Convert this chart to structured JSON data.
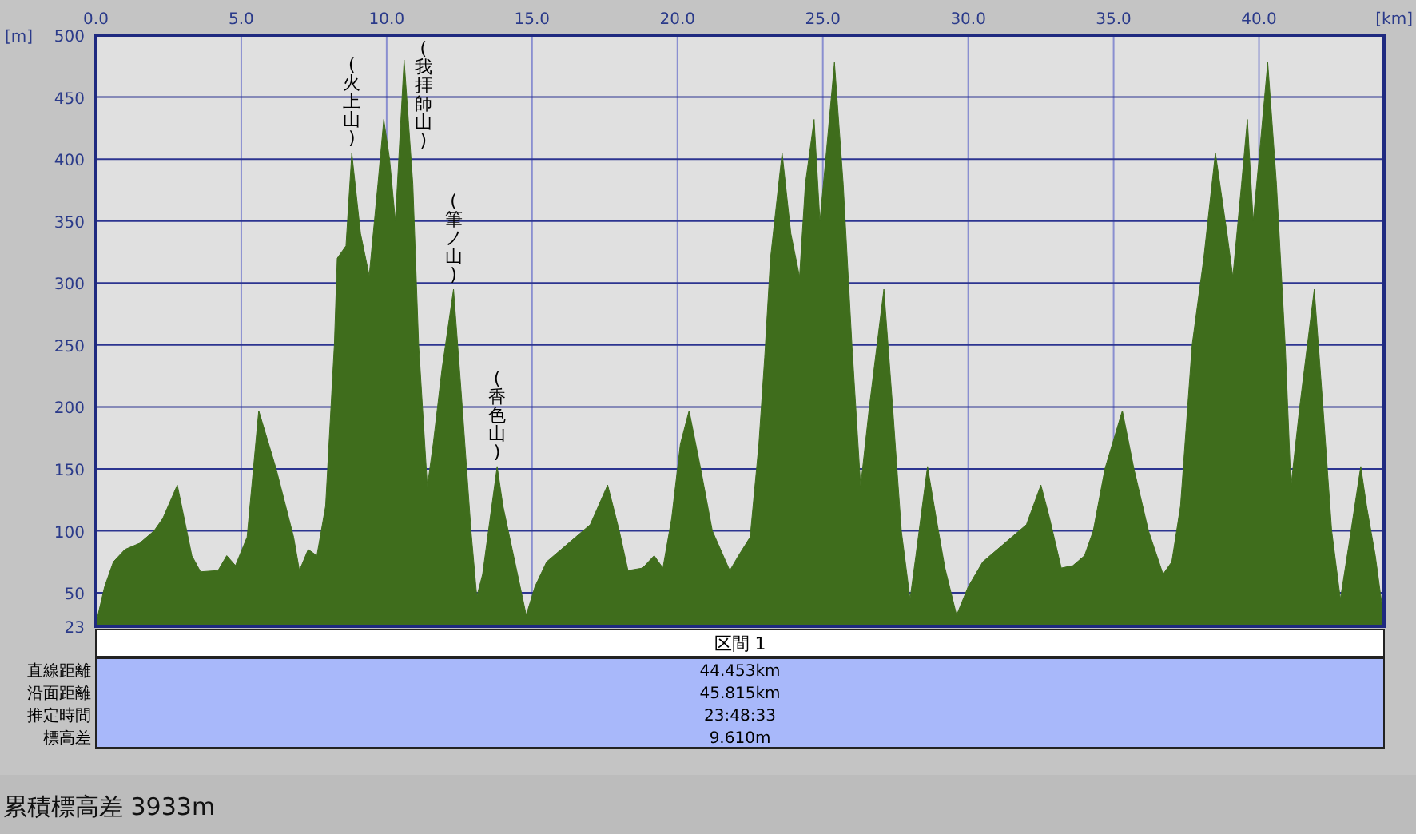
{
  "chart_data": {
    "type": "area",
    "xlabel": "[km]",
    "ylabel": "[m]",
    "color": "#3f6d1c",
    "grid": true,
    "xlim": [
      0,
      44.3
    ],
    "ylim": [
      23,
      500
    ],
    "xticks": [
      {
        "value": 0,
        "label": "0.0"
      },
      {
        "value": 5,
        "label": "5.0"
      },
      {
        "value": 10,
        "label": "10.0"
      },
      {
        "value": 15,
        "label": "15.0"
      },
      {
        "value": 20,
        "label": "20.0"
      },
      {
        "value": 25,
        "label": "25.0"
      },
      {
        "value": 30,
        "label": "30.0"
      },
      {
        "value": 35,
        "label": "35.0"
      },
      {
        "value": 40,
        "label": "40.0"
      }
    ],
    "yticks": [
      23,
      50,
      100,
      150,
      200,
      250,
      300,
      350,
      400,
      450,
      500
    ],
    "x": [
      0,
      0.3,
      0.6,
      1.0,
      1.5,
      2.0,
      2.3,
      2.8,
      3.3,
      3.6,
      4.2,
      4.5,
      4.8,
      5.2,
      5.6,
      6.2,
      6.8,
      7.0,
      7.3,
      7.6,
      7.9,
      8.2,
      8.3,
      8.6,
      8.8,
      9.1,
      9.4,
      9.7,
      9.9,
      10.1,
      10.3,
      10.6,
      10.9,
      11.1,
      11.4,
      11.6,
      11.9,
      12.3,
      12.6,
      12.9,
      13.1,
      13.3,
      13.5,
      13.8,
      14.0,
      14.5,
      14.8,
      15.1,
      15.5,
      16.0,
      16.5,
      17.0,
      17.6,
      18.0,
      18.3,
      18.8,
      19.2,
      19.5,
      19.8,
      20.1,
      20.4,
      20.8,
      21.2,
      21.8,
      22.1,
      22.5,
      22.8,
      23.0,
      23.2,
      23.6,
      23.9,
      24.2,
      24.4,
      24.7,
      24.9,
      25.1,
      25.4,
      25.7,
      26.0,
      26.3,
      26.6,
      27.1,
      27.4,
      27.7,
      28.0,
      28.2,
      28.6,
      28.9,
      29.2,
      29.6,
      30.0,
      30.5,
      31.0,
      31.5,
      32.0,
      32.5,
      32.8,
      33.2,
      33.6,
      34.0,
      34.3,
      34.7,
      35.3,
      35.7,
      36.2,
      36.7,
      37.0,
      37.3,
      37.7,
      38.1,
      38.5,
      38.9,
      39.1,
      39.4,
      39.6,
      39.8,
      40.0,
      40.3,
      40.6,
      40.9,
      41.1,
      41.4,
      41.9,
      42.2,
      42.5,
      42.8,
      43.1,
      43.5,
      43.7,
      44.0,
      44.3
    ],
    "values": [
      25,
      55,
      75,
      85,
      90,
      100,
      110,
      137,
      80,
      67,
      68,
      80,
      72,
      95,
      197,
      150,
      95,
      68,
      85,
      80,
      120,
      250,
      320,
      330,
      405,
      340,
      306,
      380,
      432,
      400,
      350,
      480,
      380,
      250,
      136,
      170,
      230,
      295,
      200,
      100,
      47,
      65,
      100,
      152,
      120,
      65,
      32,
      55,
      75,
      85,
      95,
      105,
      137,
      100,
      68,
      70,
      80,
      70,
      110,
      170,
      197,
      150,
      100,
      68,
      80,
      95,
      170,
      240,
      320,
      405,
      340,
      305,
      380,
      432,
      350,
      400,
      478,
      380,
      250,
      136,
      200,
      295,
      200,
      100,
      45,
      80,
      152,
      110,
      70,
      32,
      55,
      75,
      85,
      95,
      105,
      137,
      110,
      70,
      72,
      80,
      100,
      150,
      197,
      150,
      100,
      65,
      75,
      120,
      250,
      320,
      405,
      340,
      305,
      380,
      432,
      350,
      400,
      478,
      380,
      250,
      136,
      200,
      295,
      200,
      100,
      45,
      90,
      152,
      120,
      80,
      28
    ],
    "annotations": [
      {
        "text": "(火上山)",
        "x": 8.8,
        "y": 405
      },
      {
        "text": "(我拝師山)",
        "x": 10.6,
        "y": 480
      },
      {
        "text": "(筆ノ山)",
        "x": 12.3,
        "y": 295
      },
      {
        "text": "(香色山)",
        "x": 13.8,
        "y": 152
      },
      "区間 1",
      "直線距離",
      "44.453km",
      "沿面距離",
      "45.815km",
      "推定時間",
      "23:48:33",
      "標高差",
      "9.610m",
      "累積標高差 3933m"
    ]
  }
}
